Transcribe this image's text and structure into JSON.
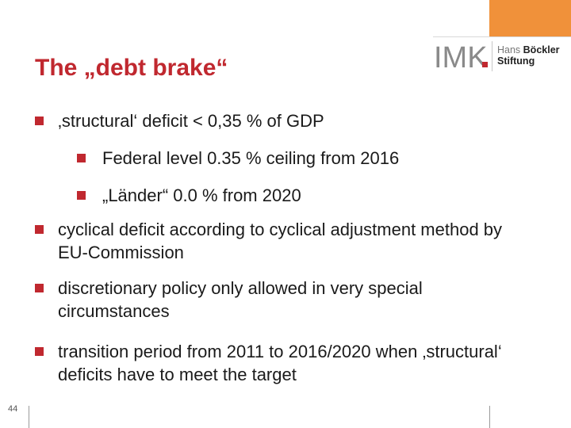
{
  "slide": {
    "title": "The „debt brake“",
    "page_number": "44"
  },
  "logos": {
    "imk": "IMK",
    "foundation_line1_light": "Hans ",
    "foundation_line1_bold": "Böckler",
    "foundation_line2": "Stiftung"
  },
  "bullets": [
    {
      "text": "‚structural‘ deficit < 0,35 % of GDP"
    },
    {
      "text": "Federal level 0.35 % ceiling from 2016"
    },
    {
      "text": "„Länder“ 0.0 % from 2020"
    },
    {
      "text": " cyclical deficit according to cyclical adjustment method by EU-Commission"
    },
    {
      "text": "discretionary policy only allowed in very special circumstances"
    },
    {
      "text": " transition period from 2011 to 2016/2020 when ‚structural‘ deficits have to meet the target"
    }
  ],
  "colors": {
    "title_red": "#c0282f",
    "bullet_red": "#c0282f",
    "corner_orange": "#f0913a",
    "imk_gray": "#8a8a8a",
    "imk_red": "#c0282f"
  }
}
